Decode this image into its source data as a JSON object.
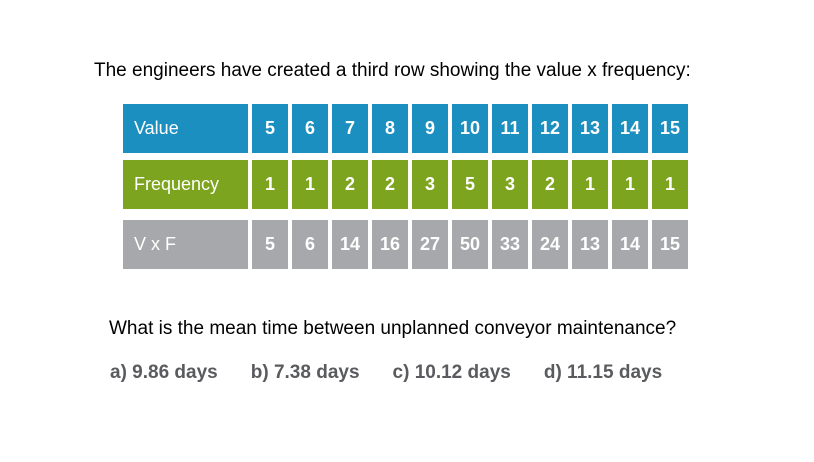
{
  "intro_text": "The engineers have created a third row showing the value x frequency:",
  "table": {
    "rows": [
      {
        "label": "Value",
        "cells": [
          "5",
          "6",
          "7",
          "8",
          "9",
          "10",
          "11",
          "12",
          "13",
          "14",
          "15"
        ]
      },
      {
        "label": "Frequency",
        "cells": [
          "1",
          "1",
          "2",
          "2",
          "3",
          "5",
          "3",
          "2",
          "1",
          "1",
          "1"
        ]
      },
      {
        "label": "V x F",
        "cells": [
          "5",
          "6",
          "14",
          "16",
          "27",
          "50",
          "33",
          "24",
          "13",
          "14",
          "15"
        ]
      }
    ],
    "colors": {
      "value_row": "#1a8fc0",
      "frequency_row": "#7da41e",
      "vxf_row": "#a7a8ab"
    }
  },
  "question": "What is the mean time between unplanned conveyor maintenance?",
  "answers": [
    "a) 9.86 days",
    "b) 7.38 days",
    "c) 10.12 days",
    "d) 11.15 days"
  ]
}
